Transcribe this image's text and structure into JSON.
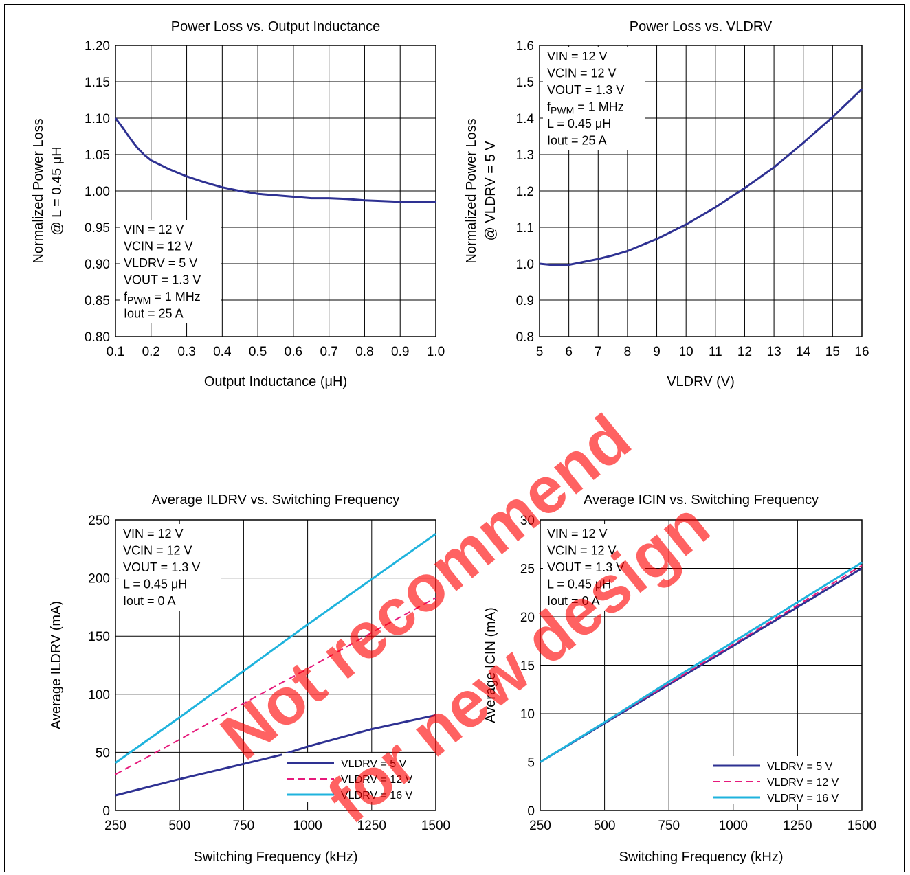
{
  "colors": {
    "navy": "#2e3192",
    "magenta": "#e6197b",
    "cyan": "#1fb3dd",
    "watermark": "#ff0000",
    "grid": "#000000"
  },
  "watermark": {
    "line1": "Not recommend",
    "line2": "for new design"
  },
  "chart_data": [
    {
      "type": "line",
      "title": "Power Loss vs. Output Inductance",
      "xlabel": "Output Inductance   (μH)",
      "ylabel_lines": [
        "Normalized Power Loss",
        "@ L = 0.45 μH"
      ],
      "xlim": [
        0.1,
        1.0
      ],
      "ylim": [
        0.8,
        1.2
      ],
      "x_ticks": [
        0.1,
        0.2,
        0.3,
        0.4,
        0.5,
        0.6,
        0.7,
        0.8,
        0.9,
        1.0
      ],
      "x_tick_labels": [
        "0.1",
        "0.2",
        "0.3",
        "0.4",
        "0.5",
        "0.6",
        "0.7",
        "0.8",
        "0.9",
        "1.0"
      ],
      "y_ticks": [
        0.8,
        0.85,
        0.9,
        0.95,
        1.0,
        1.05,
        1.1,
        1.15,
        1.2
      ],
      "y_tick_labels": [
        "0.80",
        "0.85",
        "0.90",
        "0.95",
        "1.00",
        "1.05",
        "1.10",
        "1.15",
        "1.20"
      ],
      "grid": true,
      "annotation_position": "bottom-left",
      "annotations": [
        "VIN = 12 V",
        "VCIN = 12 V",
        "VLDRV = 5 V",
        "VOUT = 1.3 V",
        "fPWM = 1 MHz",
        "Iout = 25 A"
      ],
      "legend": [],
      "series": [
        {
          "name": "",
          "color": "navy",
          "dash": false,
          "x": [
            0.1,
            0.12,
            0.14,
            0.16,
            0.18,
            0.2,
            0.25,
            0.3,
            0.35,
            0.4,
            0.45,
            0.5,
            0.55,
            0.6,
            0.65,
            0.7,
            0.75,
            0.8,
            0.85,
            0.9,
            0.95,
            1.0
          ],
          "y": [
            1.1,
            1.087,
            1.073,
            1.06,
            1.05,
            1.042,
            1.03,
            1.02,
            1.012,
            1.005,
            1.0,
            0.996,
            0.994,
            0.992,
            0.99,
            0.99,
            0.989,
            0.987,
            0.986,
            0.985,
            0.985,
            0.985
          ]
        }
      ]
    },
    {
      "type": "line",
      "title": "Power Loss vs. VLDRV",
      "xlabel": "VLDRV    (V)",
      "ylabel_lines": [
        "Normalized Power Loss",
        "@ VLDRV = 5 V"
      ],
      "xlim": [
        5,
        16
      ],
      "ylim": [
        0.8,
        1.6
      ],
      "x_ticks": [
        5,
        6,
        7,
        8,
        9,
        10,
        11,
        12,
        13,
        14,
        15,
        16
      ],
      "x_tick_labels": [
        "5",
        "6",
        "7",
        "8",
        "9",
        "10",
        "11",
        "12",
        "13",
        "14",
        "15",
        "16"
      ],
      "y_ticks": [
        0.8,
        0.9,
        1.0,
        1.1,
        1.2,
        1.3,
        1.4,
        1.5,
        1.6
      ],
      "y_tick_labels": [
        "0.8",
        "0.9",
        "1.0",
        "1.1",
        "1.2",
        "1.3",
        "1.4",
        "1.5",
        "1.6"
      ],
      "grid": true,
      "annotation_position": "top-left",
      "annotations": [
        "VIN = 12 V",
        "VCIN = 12 V",
        "VOUT = 1.3 V",
        "fPWM = 1 MHz",
        "L = 0.45 μH",
        "Iout = 25 A"
      ],
      "legend": [],
      "series": [
        {
          "name": "",
          "color": "navy",
          "dash": false,
          "x": [
            5,
            5.5,
            6,
            6.5,
            7,
            7.5,
            8,
            9,
            10,
            11,
            12,
            13,
            14,
            15,
            16
          ],
          "y": [
            1.0,
            0.996,
            0.997,
            1.005,
            1.013,
            1.023,
            1.035,
            1.068,
            1.108,
            1.155,
            1.208,
            1.265,
            1.332,
            1.403,
            1.48
          ]
        }
      ]
    },
    {
      "type": "line",
      "title": "Average ILDRV vs. Switching Frequency",
      "xlabel": "Switching Frequency   (kHz)",
      "ylabel_lines": [
        "Average ILDRV   (mA)"
      ],
      "xlim": [
        250,
        1500
      ],
      "ylim": [
        0,
        250
      ],
      "x_ticks": [
        250,
        500,
        750,
        1000,
        1250,
        1500
      ],
      "x_tick_labels": [
        "250",
        "500",
        "750",
        "1000",
        "1250",
        "1500"
      ],
      "y_ticks": [
        0,
        50,
        100,
        150,
        200,
        250
      ],
      "y_tick_labels": [
        "0",
        "50",
        "100",
        "150",
        "200",
        "250"
      ],
      "grid": true,
      "annotation_position": "top-left",
      "annotations": [
        "VIN = 12 V",
        "VCIN = 12 V",
        "VOUT = 1.3 V",
        "L = 0.45 μH",
        "Iout = 0 A"
      ],
      "legend_position": "bottom-right",
      "legend": [
        {
          "label": "VLDRV = 5 V",
          "color": "navy",
          "dash": false
        },
        {
          "label": "VLDRV = 12 V",
          "color": "magenta",
          "dash": true
        },
        {
          "label": "VLDRV = 16 V",
          "color": "cyan",
          "dash": false
        }
      ],
      "series": [
        {
          "name": "VLDRV = 5 V",
          "color": "navy",
          "dash": false,
          "x": [
            250,
            500,
            750,
            900,
            1000,
            1250,
            1500
          ],
          "y": [
            13,
            27,
            40,
            48,
            55,
            70,
            82
          ]
        },
        {
          "name": "VLDRV = 12 V",
          "color": "magenta",
          "dash": true,
          "x": [
            250,
            500,
            750,
            1000,
            1250,
            1500
          ],
          "y": [
            31,
            61,
            92,
            122,
            153,
            183
          ]
        },
        {
          "name": "VLDRV = 16 V",
          "color": "cyan",
          "dash": false,
          "x": [
            250,
            500,
            750,
            1000,
            1250,
            1500
          ],
          "y": [
            41,
            80,
            120,
            160,
            199,
            238
          ]
        }
      ]
    },
    {
      "type": "line",
      "title": "Average ICIN vs. Switching Frequency",
      "xlabel": "Switching Frequency    (kHz)",
      "ylabel_lines": [
        "Average ICIN   (mA)"
      ],
      "xlim": [
        250,
        1500
      ],
      "ylim": [
        0,
        30
      ],
      "x_ticks": [
        250,
        500,
        750,
        1000,
        1250,
        1500
      ],
      "x_tick_labels": [
        "250",
        "500",
        "750",
        "1000",
        "1250",
        "1500"
      ],
      "y_ticks": [
        0,
        5,
        10,
        15,
        20,
        25,
        30
      ],
      "y_tick_labels": [
        "0",
        "5",
        "10",
        "15",
        "20",
        "25",
        "30"
      ],
      "grid": true,
      "annotation_position": "top-left",
      "annotations": [
        "VIN = 12 V",
        "VCIN = 12 V",
        "VOUT = 1.3 V",
        "L = 0.45 μH",
        "Iout = 0 A"
      ],
      "legend_position": "bottom-right",
      "legend": [
        {
          "label": "VLDRV = 5 V",
          "color": "navy",
          "dash": false
        },
        {
          "label": "VLDRV = 12 V",
          "color": "magenta",
          "dash": true
        },
        {
          "label": "VLDRV = 16 V",
          "color": "cyan",
          "dash": false
        }
      ],
      "series": [
        {
          "name": "VLDRV = 5 V",
          "color": "navy",
          "dash": false,
          "x": [
            250,
            500,
            750,
            1000,
            1250,
            1500
          ],
          "y": [
            5,
            9,
            13,
            17,
            21,
            25
          ]
        },
        {
          "name": "VLDRV = 12 V",
          "color": "magenta",
          "dash": true,
          "x": [
            250,
            500,
            750,
            1000,
            1250,
            1500
          ],
          "y": [
            5,
            9.05,
            13.1,
            17.15,
            21.2,
            25.3
          ]
        },
        {
          "name": "VLDRV = 16 V",
          "color": "cyan",
          "dash": false,
          "x": [
            250,
            500,
            750,
            1000,
            1250,
            1500
          ],
          "y": [
            5,
            9.1,
            13.3,
            17.4,
            21.5,
            25.6
          ]
        }
      ]
    }
  ]
}
